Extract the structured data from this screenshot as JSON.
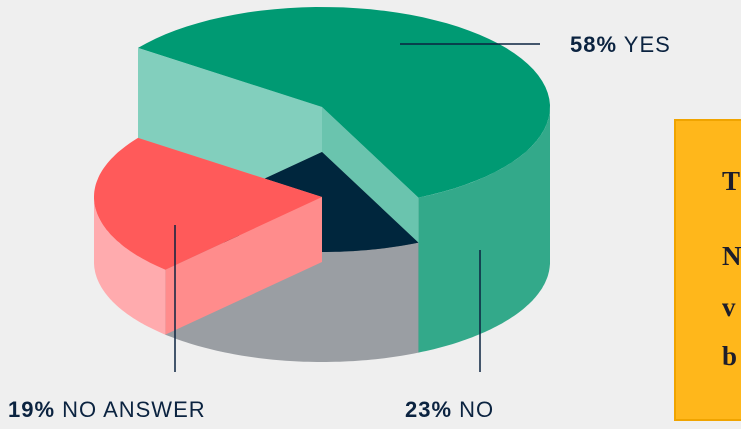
{
  "chart_data": {
    "type": "pie",
    "categories": [
      "YES",
      "NO",
      "NO ANSWER"
    ],
    "values": [
      58,
      23,
      19
    ],
    "value_labels": [
      "58%",
      "23%",
      "19%"
    ],
    "colors": [
      "#009a73",
      "#ff5a5a",
      "#00263d"
    ]
  },
  "box": {
    "lines": [
      "T",
      "N",
      "v",
      "b"
    ]
  }
}
